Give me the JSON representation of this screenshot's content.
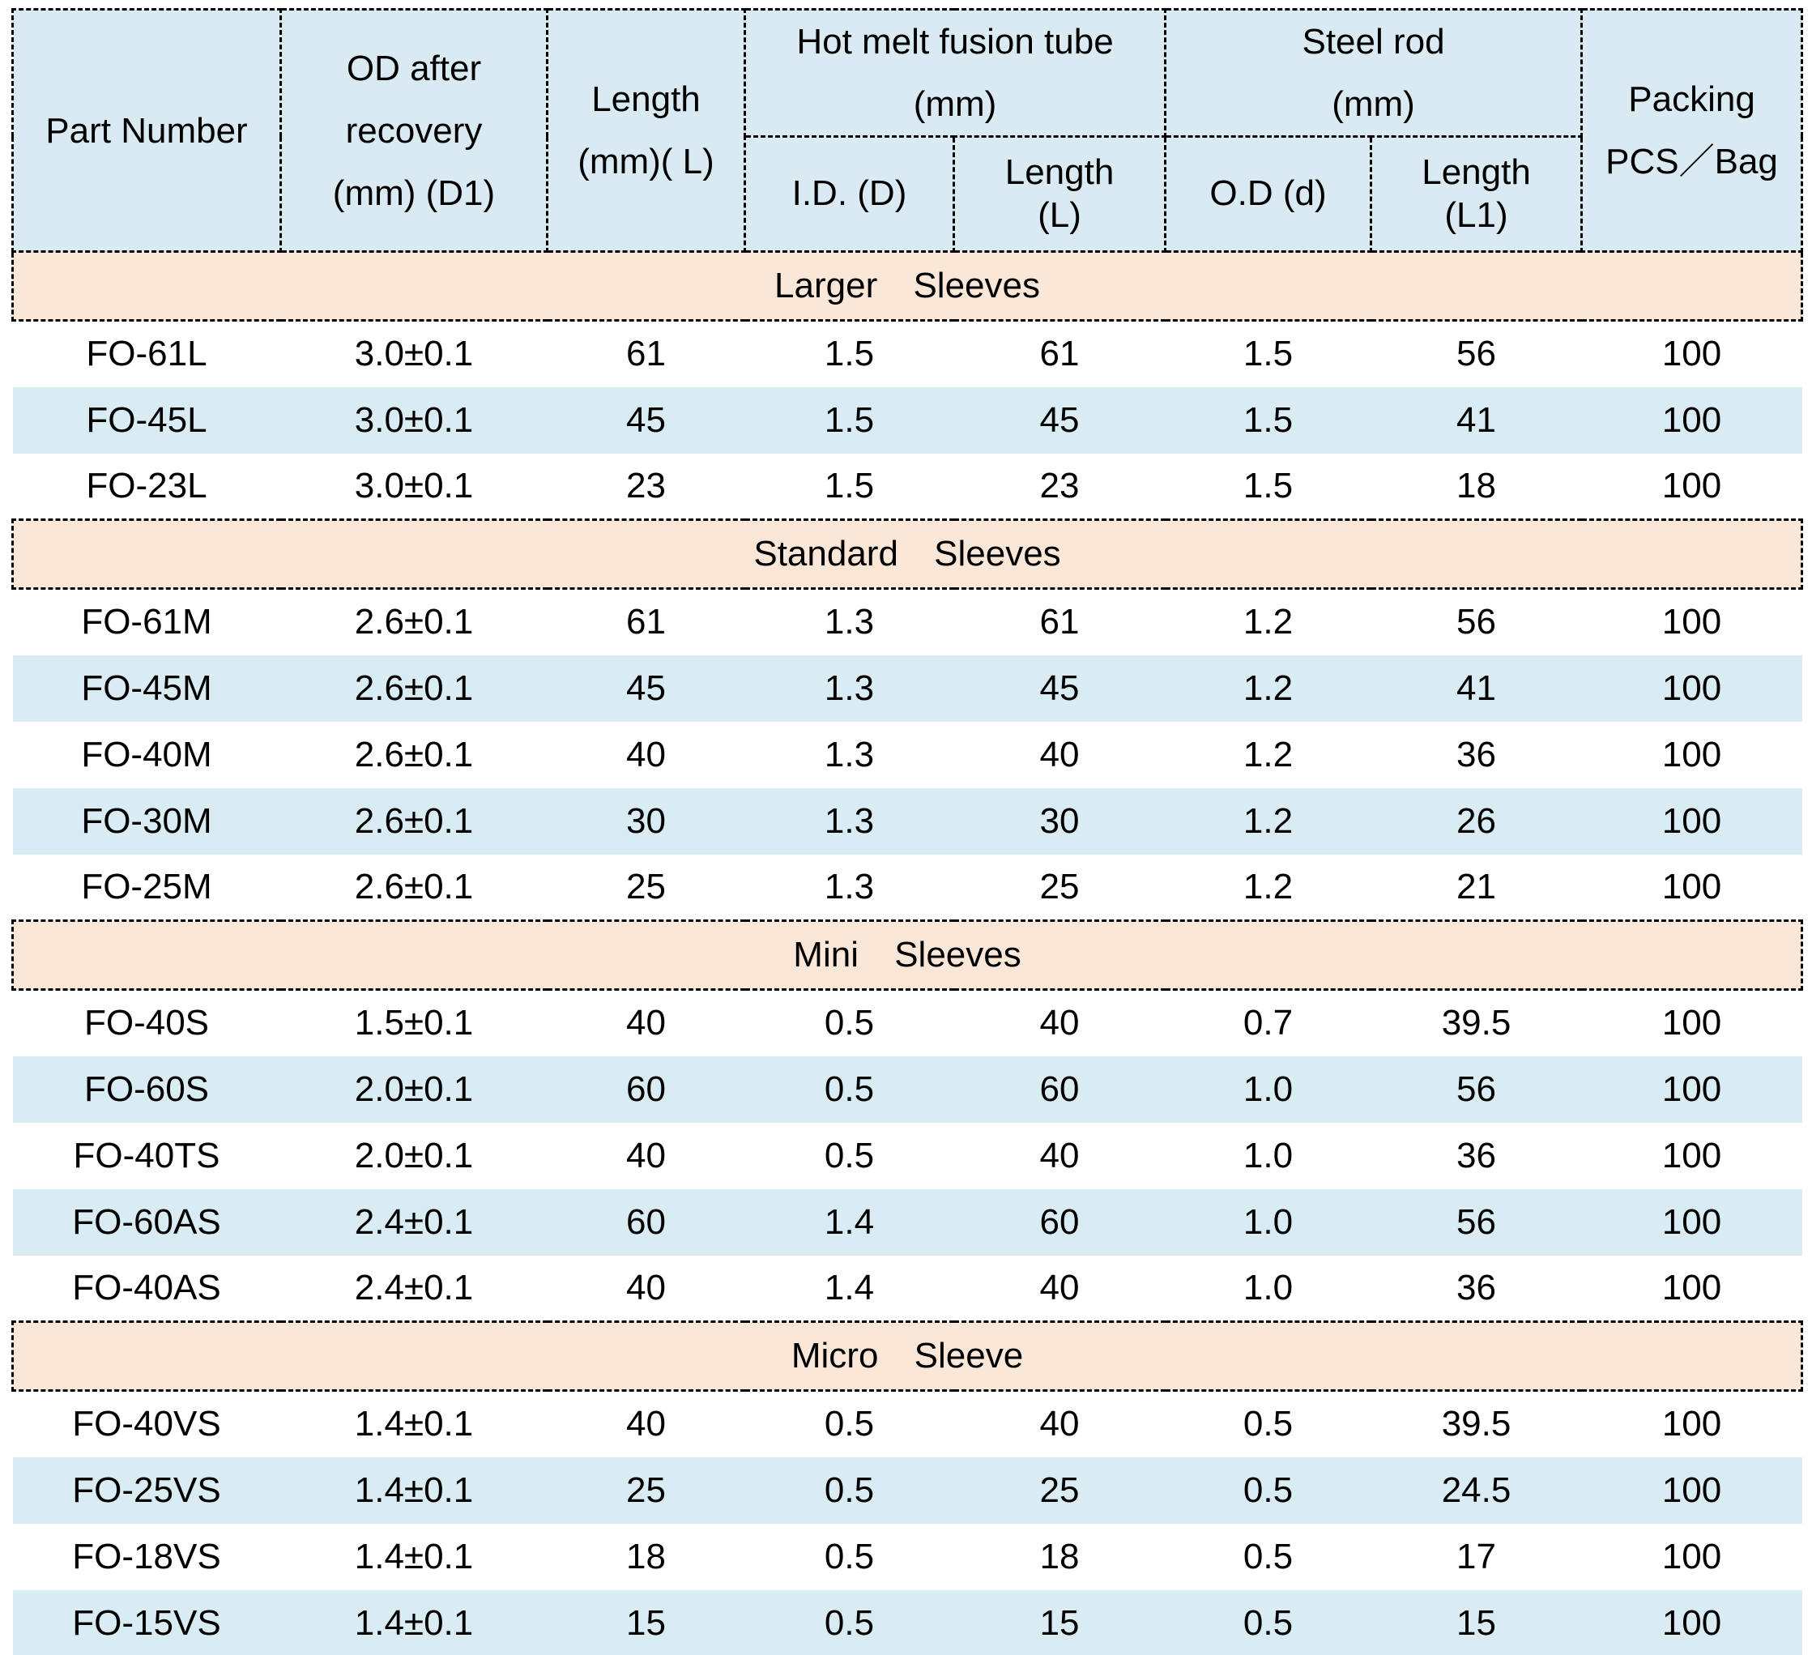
{
  "header": {
    "part_number": "Part Number",
    "od_after_recovery": "OD after\nrecovery\n(mm) (D1)",
    "length": "Length\n(mm)( L)",
    "hot_melt_group": "Hot melt fusion tube\n(mm)",
    "hot_melt_id": "I.D. (D)",
    "hot_melt_length": "Length\n(L)",
    "steel_rod_group": "Steel rod\n(mm)",
    "steel_rod_od": "O.D (d)",
    "steel_rod_length": "Length\n(L1)",
    "packing": "Packing\nPCS／Bag"
  },
  "sections": [
    {
      "title": "Larger Sleeves",
      "rows": [
        [
          "FO-61L",
          "3.0±0.1",
          "61",
          "1.5",
          "61",
          "1.5",
          "56",
          "100"
        ],
        [
          "FO-45L",
          "3.0±0.1",
          "45",
          "1.5",
          "45",
          "1.5",
          "41",
          "100"
        ],
        [
          "FO-23L",
          "3.0±0.1",
          "23",
          "1.5",
          "23",
          "1.5",
          "18",
          "100"
        ]
      ]
    },
    {
      "title": "Standard Sleeves",
      "rows": [
        [
          "FO-61M",
          "2.6±0.1",
          "61",
          "1.3",
          "61",
          "1.2",
          "56",
          "100"
        ],
        [
          "FO-45M",
          "2.6±0.1",
          "45",
          "1.3",
          "45",
          "1.2",
          "41",
          "100"
        ],
        [
          "FO-40M",
          "2.6±0.1",
          "40",
          "1.3",
          "40",
          "1.2",
          "36",
          "100"
        ],
        [
          "FO-30M",
          "2.6±0.1",
          "30",
          "1.3",
          "30",
          "1.2",
          "26",
          "100"
        ],
        [
          "FO-25M",
          "2.6±0.1",
          "25",
          "1.3",
          "25",
          "1.2",
          "21",
          "100"
        ]
      ]
    },
    {
      "title": "Mini Sleeves",
      "rows": [
        [
          "FO-40S",
          "1.5±0.1",
          "40",
          "0.5",
          "40",
          "0.7",
          "39.5",
          "100"
        ],
        [
          "FO-60S",
          "2.0±0.1",
          "60",
          "0.5",
          "60",
          "1.0",
          "56",
          "100"
        ],
        [
          "FO-40TS",
          "2.0±0.1",
          "40",
          "0.5",
          "40",
          "1.0",
          "36",
          "100"
        ],
        [
          "FO-60AS",
          "2.4±0.1",
          "60",
          "1.4",
          "60",
          "1.0",
          "56",
          "100"
        ],
        [
          "FO-40AS",
          "2.4±0.1",
          "40",
          "1.4",
          "40",
          "1.0",
          "36",
          "100"
        ]
      ]
    },
    {
      "title": "Micro Sleeve",
      "rows": [
        [
          "FO-40VS",
          "1.4±0.1",
          "40",
          "0.5",
          "40",
          "0.5",
          "39.5",
          "100"
        ],
        [
          "FO-25VS",
          "1.4±0.1",
          "25",
          "0.5",
          "25",
          "0.5",
          "24.5",
          "100"
        ],
        [
          "FO-18VS",
          "1.4±0.1",
          "18",
          "0.5",
          "18",
          "0.5",
          "17",
          "100"
        ],
        [
          "FO-15VS",
          "1.4±0.1",
          "15",
          "0.5",
          "15",
          "0.5",
          "15",
          "100"
        ]
      ]
    }
  ],
  "colors": {
    "header_bg": "#d9eaf2",
    "row_alt_bg": "#daecf3",
    "section_band_bg": "#fbe7d8",
    "border": "#000000",
    "text": "#000000"
  }
}
